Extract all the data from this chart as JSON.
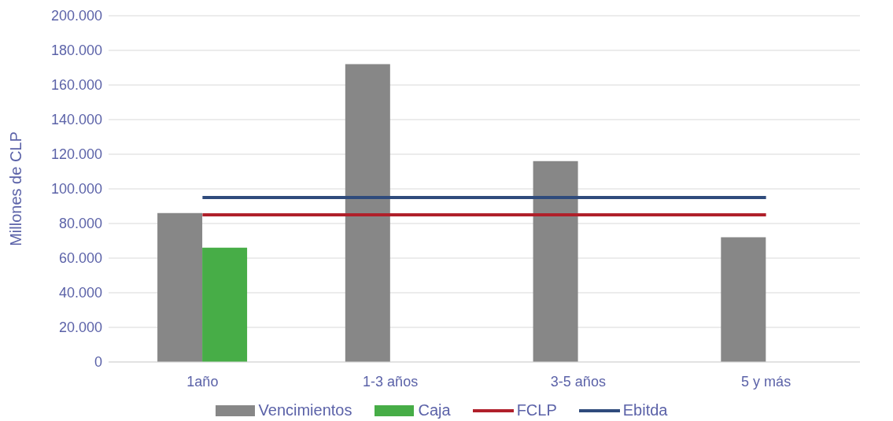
{
  "chart_data": {
    "type": "bar",
    "ylabel": "Millones de CLP",
    "categories": [
      "1año",
      "1-3 años",
      "3-5 años",
      "5 y más"
    ],
    "series": [
      {
        "name": "Vencimientos",
        "color": "#878787",
        "values": [
          86000,
          172000,
          116000,
          72000
        ]
      },
      {
        "name": "Caja",
        "color": "#47ad47",
        "values": [
          66000,
          null,
          null,
          null
        ]
      },
      {
        "name": "FCLP",
        "type": "line",
        "color": "#b0202a",
        "values": [
          85000,
          85000,
          85000,
          85000
        ]
      },
      {
        "name": "Ebitda",
        "type": "line",
        "color": "#2f4b7c",
        "values": [
          95000,
          95000,
          95000,
          95000
        ]
      }
    ],
    "ylim": [
      0,
      200000
    ],
    "yticks": [
      {
        "value": 0,
        "label": "0"
      },
      {
        "value": 20000,
        "label": "20.000"
      },
      {
        "value": 40000,
        "label": "40.000"
      },
      {
        "value": 60000,
        "label": "60.000"
      },
      {
        "value": 80000,
        "label": "80.000"
      },
      {
        "value": 100000,
        "label": "100.000"
      },
      {
        "value": 120000,
        "label": "120.000"
      },
      {
        "value": 140000,
        "label": "140.000"
      },
      {
        "value": 160000,
        "label": "160.000"
      },
      {
        "value": 180000,
        "label": "180.000"
      },
      {
        "value": 200000,
        "label": "200.000"
      }
    ],
    "grid": "y",
    "legend": "bottom",
    "marker": "none"
  }
}
